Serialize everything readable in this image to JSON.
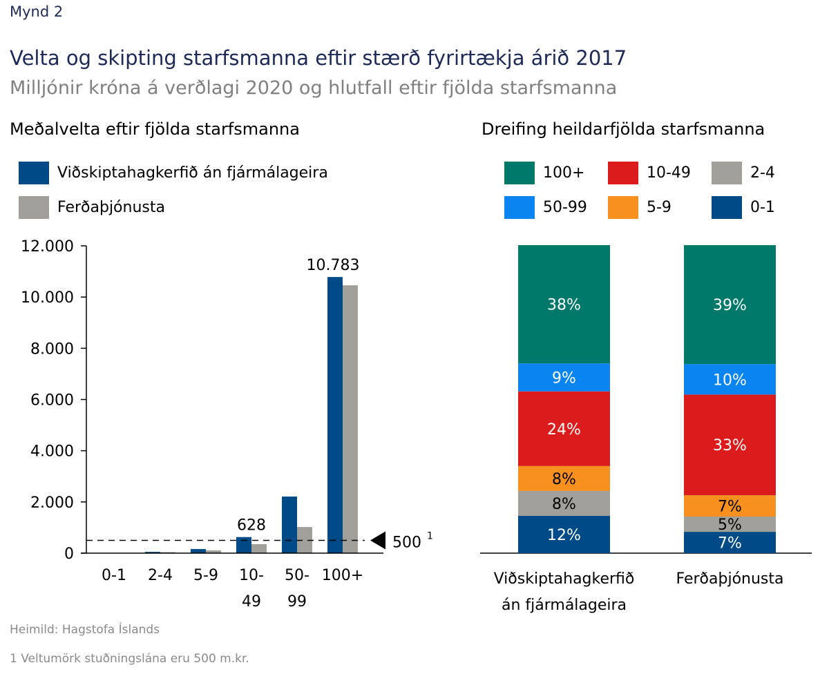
{
  "figure_label": "Mynd 2",
  "title": "Velta og skipting starfsmanna eftir stærð fyrirtækja árið 2017",
  "subtitle": "Milljónir króna á verðlagi 2020 og hlutfall eftir fjölda starfsmanna",
  "source": "Heimild: Hagstofa Íslands",
  "footnote": "1 Veltumörk stuðningslána eru 500 m.kr.",
  "chart_data": [
    {
      "type": "bar",
      "title": "Meðalvelta eftir fjölda starfsmanna",
      "categories": [
        "0-1",
        "2-4",
        "5-9",
        "10-\n49",
        "50-\n99",
        "100+"
      ],
      "series": [
        {
          "name": "Viðskiptahagkerfið án fjármálageira",
          "color": "#004b87",
          "values": [
            10,
            50,
            160,
            628,
            2210,
            10783
          ]
        },
        {
          "name": "Ferðaþjónusta",
          "color": "#a09f9a",
          "values": [
            10,
            40,
            110,
            350,
            1020,
            10460
          ]
        }
      ],
      "ylim": [
        0,
        12000
      ],
      "yticks": [
        "0",
        "2.000",
        "4.000",
        "6.000",
        "8.000",
        "10.000",
        "12.000"
      ],
      "ytick_values": [
        0,
        2000,
        4000,
        6000,
        8000,
        10000,
        12000
      ],
      "data_labels": [
        {
          "category": "10-49",
          "text": "628"
        },
        {
          "category": "100+",
          "text": "10.783"
        }
      ],
      "reference_line": {
        "value": 500,
        "label": "500",
        "superscript": "1",
        "style": "dashed"
      },
      "legend_placement": "top-left",
      "grid": false
    },
    {
      "type": "bar",
      "stacked": true,
      "title": "Dreifing heildarfjölda starfsmanna",
      "categories": [
        "Viðskiptahagkerfið\nán fjármálageira",
        "Ferðaþjónusta"
      ],
      "series": [
        {
          "name": "0-1",
          "color": "#004b87",
          "text_color": "#ffffff",
          "values": [
            12,
            7
          ]
        },
        {
          "name": "2-4",
          "color": "#a09f9a",
          "text_color": "#000000",
          "values": [
            8,
            5
          ]
        },
        {
          "name": "5-9",
          "color": "#f7901e",
          "text_color": "#000000",
          "values": [
            8,
            7
          ]
        },
        {
          "name": "10-49",
          "color": "#dc1c1c",
          "text_color": "#ffffff",
          "values": [
            24,
            33
          ]
        },
        {
          "name": "50-99",
          "color": "#0a84f0",
          "text_color": "#ffffff",
          "values": [
            9,
            10
          ]
        },
        {
          "name": "100+",
          "color": "#00796b",
          "text_color": "#ffffff",
          "values": [
            38,
            39
          ]
        }
      ],
      "unit": "%",
      "legend_order": [
        "100+",
        "10-49",
        "2-4",
        "50-99",
        "5-9",
        "0-1"
      ],
      "legend_placement": "top",
      "grid": false
    }
  ]
}
